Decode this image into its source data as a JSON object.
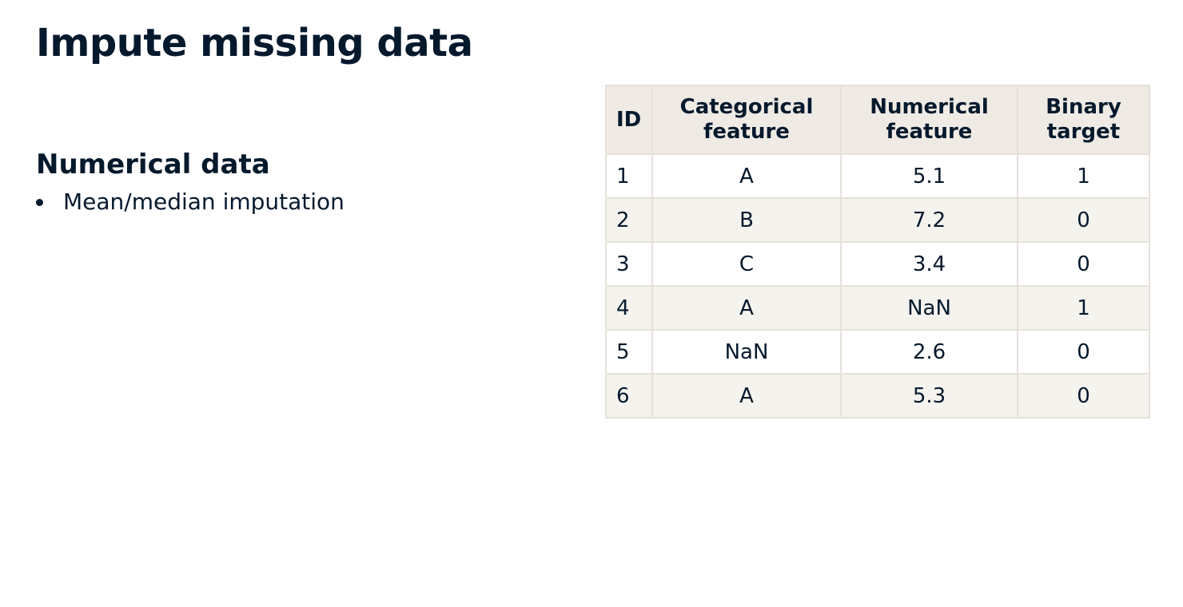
{
  "title": "Impute missing data",
  "section": {
    "heading": "Numerical data",
    "bullets": [
      "Mean/median imputation"
    ]
  },
  "table": {
    "headers": [
      {
        "line1": "ID",
        "line2": ""
      },
      {
        "line1": "Categorical",
        "line2": "feature"
      },
      {
        "line1": "Numerical",
        "line2": "feature"
      },
      {
        "line1": "Binary",
        "line2": "target"
      }
    ],
    "rows": [
      [
        "1",
        "A",
        "5.1",
        "1"
      ],
      [
        "2",
        "B",
        "7.2",
        "0"
      ],
      [
        "3",
        "C",
        "3.4",
        "0"
      ],
      [
        "4",
        "A",
        "NaN",
        "1"
      ],
      [
        "5",
        "NaN",
        "2.6",
        "0"
      ],
      [
        "6",
        "A",
        "5.3",
        "0"
      ]
    ]
  },
  "colors": {
    "text": "#05192d",
    "header_bg": "#efebe4",
    "alt_row_bg": "#f5f3ee",
    "border": "#e5e1da"
  }
}
